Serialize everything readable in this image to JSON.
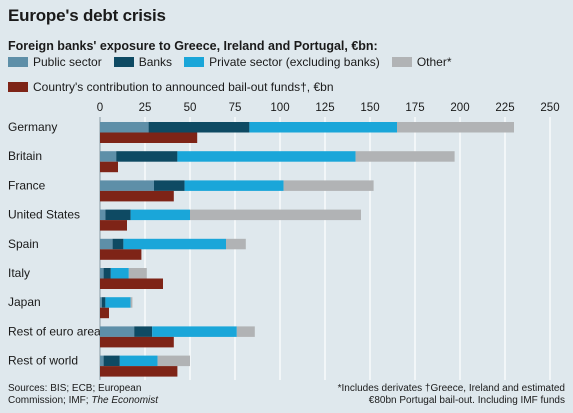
{
  "title": "Europe's debt crisis",
  "subtitle": "Foreign banks' exposure to Greece, Ireland and Portugal, €bn:",
  "legend": [
    {
      "label": "Public sector",
      "color": "#5e8fa8"
    },
    {
      "label": "Banks",
      "color": "#0e4a63"
    },
    {
      "label": "Private sector (excluding banks)",
      "color": "#1aa6d9"
    },
    {
      "label": "Other*",
      "color": "#b1b3b5"
    }
  ],
  "legend_contribution": {
    "label": "Country's contribution to announced bail-out funds†, €bn",
    "color": "#7e2417"
  },
  "footer": {
    "sources_line1": "Sources: BIS; ECB; European",
    "sources_line2": "Commission; IMF;",
    "sources_italic": "The Economist",
    "note1": "*Includes derivates     †Greece, Ireland and estimated",
    "note2": "€80bn Portugal bail-out. Including IMF funds"
  },
  "chart_data": {
    "type": "bar",
    "orientation": "horizontal",
    "stacked": true,
    "xlim": [
      0,
      250
    ],
    "ticks": [
      0,
      25,
      50,
      75,
      100,
      125,
      150,
      175,
      200,
      225,
      250
    ],
    "categories": [
      "Germany",
      "Britain",
      "France",
      "United States",
      "Spain",
      "Italy",
      "Japan",
      "Rest of euro area",
      "Rest of world"
    ],
    "series": [
      {
        "name": "Public sector",
        "color": "#5e8fa8",
        "values": [
          27,
          9,
          30,
          3,
          7,
          2,
          1,
          19,
          2
        ]
      },
      {
        "name": "Banks",
        "color": "#0e4a63",
        "values": [
          56,
          34,
          17,
          14,
          6,
          4,
          2,
          10,
          9
        ]
      },
      {
        "name": "Private sector (excluding banks)",
        "color": "#1aa6d9",
        "values": [
          82,
          99,
          55,
          33,
          57,
          10,
          14,
          47,
          21
        ]
      },
      {
        "name": "Other*",
        "color": "#b1b3b5",
        "values": [
          65,
          55,
          50,
          95,
          11,
          10,
          1,
          10,
          18
        ]
      }
    ],
    "contribution": {
      "name": "Country's contribution to announced bail-out funds†, €bn",
      "color": "#7e2417",
      "values": [
        54,
        10,
        41,
        15,
        23,
        35,
        5,
        41,
        43
      ]
    }
  }
}
